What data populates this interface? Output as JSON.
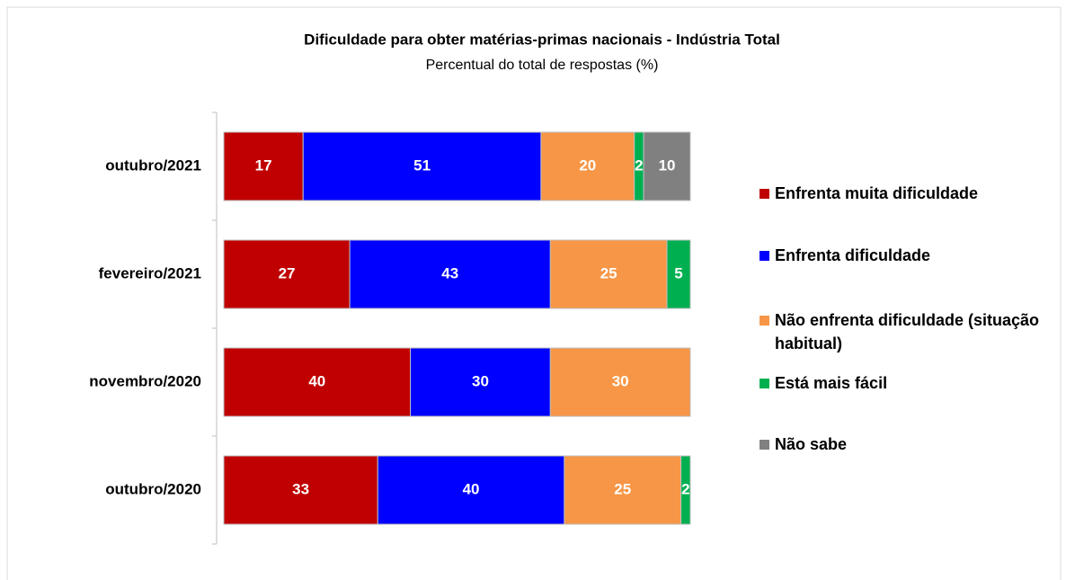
{
  "chart_data": {
    "type": "stacked_barh",
    "title": "Dificuldade para obter matérias-primas nacionais - Indústria Total",
    "subtitle": "Percentual do total de respostas (%)",
    "categories": [
      "outubro/2021",
      "fevereiro/2021",
      "novembro/2020",
      "outubro/2020"
    ],
    "series": [
      {
        "name": "Enfrenta muita dificuldade",
        "color": "#c00000",
        "values": [
          17,
          27,
          40,
          33
        ]
      },
      {
        "name": "Enfrenta dificuldade",
        "color": "#0000ff",
        "values": [
          51,
          43,
          30,
          40
        ]
      },
      {
        "name": "Não enfrenta dificuldade (situação habitual)",
        "color": "#f79646",
        "values": [
          20,
          25,
          30,
          25
        ]
      },
      {
        "name": "Está mais fácil",
        "color": "#00b050",
        "values": [
          2,
          5,
          null,
          2
        ]
      },
      {
        "name": "Não sabe",
        "color": "#808080",
        "values": [
          10,
          null,
          null,
          null
        ]
      }
    ],
    "xlim": [
      0,
      100
    ],
    "legend": "right"
  }
}
